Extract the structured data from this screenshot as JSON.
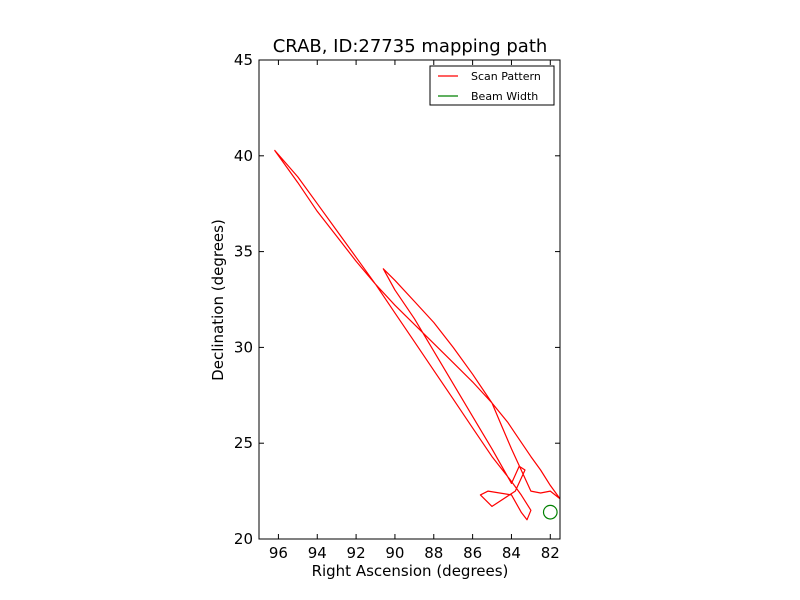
{
  "chart_data": {
    "type": "line",
    "title": "CRAB, ID:27735 mapping path",
    "xlabel": "Right Ascension (degrees)",
    "ylabel": "Declination (degrees)",
    "xlim": [
      97.0,
      81.5
    ],
    "ylim": [
      20,
      45
    ],
    "x_inverted": true,
    "xticks": [
      96,
      94,
      92,
      90,
      88,
      86,
      84,
      82
    ],
    "yticks": [
      20,
      25,
      30,
      35,
      40,
      45
    ],
    "grid": false,
    "legend_position": "top-right",
    "series": [
      {
        "name": "Scan Pattern",
        "color": "#ff0000",
        "x": [
          96.2,
          95.0,
          94.0,
          93.0,
          92.0,
          91.0,
          90.0,
          89.0,
          88.0,
          87.0,
          86.0,
          85.0,
          84.2,
          83.8,
          83.0,
          82.5,
          82.0,
          81.5,
          82.0,
          82.5,
          83.0,
          83.5,
          84.0,
          84.5,
          85.0,
          86.0,
          87.0,
          88.0,
          89.0,
          90.0,
          90.6,
          90.0,
          89.0,
          88.0,
          87.0,
          86.0,
          85.0,
          84.0,
          83.6,
          83.3,
          83.8,
          85.0,
          85.6,
          85.2,
          84.0,
          83.5,
          83.2,
          83.0,
          83.5,
          84.0,
          85.0,
          86.0,
          87.0,
          88.0,
          89.0,
          90.0,
          91.0,
          92.0,
          93.0,
          94.0,
          95.0,
          96.2
        ],
        "y": [
          40.3,
          38.6,
          37.1,
          35.8,
          34.5,
          33.3,
          32.2,
          31.2,
          30.2,
          29.2,
          28.2,
          27.1,
          26.1,
          25.5,
          24.3,
          23.6,
          22.8,
          22.1,
          22.5,
          22.4,
          22.5,
          23.6,
          24.7,
          25.9,
          27.1,
          28.6,
          30.0,
          31.3,
          32.4,
          33.5,
          34.1,
          33.0,
          31.5,
          29.8,
          28.1,
          26.4,
          24.7,
          22.9,
          23.8,
          23.6,
          22.5,
          21.7,
          22.3,
          22.5,
          22.3,
          21.4,
          21.0,
          21.5,
          22.3,
          23.0,
          24.3,
          25.8,
          27.3,
          28.8,
          30.3,
          31.8,
          33.3,
          34.7,
          36.1,
          37.5,
          38.9,
          40.3
        ]
      },
      {
        "name": "Beam Width",
        "color": "#008000",
        "center": [
          82.0,
          21.4
        ],
        "radius_deg": 0.35
      }
    ]
  }
}
